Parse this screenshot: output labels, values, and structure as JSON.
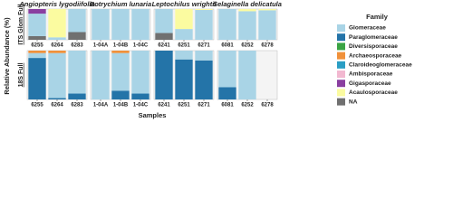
{
  "chart_data": {
    "type": "bar",
    "stacked": true,
    "y_label": "Relative Abundance (%)",
    "x_label": "Samples",
    "legend_title": "Family",
    "ylim": [
      0,
      100
    ],
    "facet_rows": [
      "ITS Glom Full",
      "18S Full"
    ],
    "facet_columns": [
      "Angiopteris lygodiifolia",
      "Botrychium lunaria",
      "Leptochilus wrightii",
      "Selaginella delicatula"
    ],
    "panels": [
      {
        "categories": [
          "6255",
          "6264",
          "6283"
        ]
      },
      {
        "categories": [
          "1-04A",
          "1-04B",
          "1-04C"
        ]
      },
      {
        "categories": [
          "6241",
          "6251",
          "6271"
        ]
      },
      {
        "categories": [
          "6081",
          "6252",
          "6278"
        ]
      },
      {
        "categories": [
          "6255",
          "6264",
          "6283"
        ]
      },
      {
        "categories": [
          "1-04A",
          "1-04B",
          "1-04C"
        ]
      },
      {
        "categories": [
          "6241",
          "6251",
          "6271"
        ]
      },
      {
        "categories": [
          "6081",
          "6252",
          "6278"
        ]
      }
    ],
    "series": [
      {
        "name": "Glomeraceae",
        "color": "#a9d4e6",
        "values": [
          [
            73,
            8,
            75
          ],
          [
            100,
            100,
            100
          ],
          [
            78,
            35,
            97
          ],
          [
            100,
            93,
            96
          ],
          [
            10,
            92,
            88
          ],
          [
            100,
            77,
            88
          ],
          [
            0,
            18,
            20
          ],
          [
            75,
            100,
            0
          ]
        ]
      },
      {
        "name": "Paraglomeraceae",
        "color": "#2474a8",
        "values": [
          [
            0,
            0,
            0
          ],
          [
            0,
            0,
            0
          ],
          [
            0,
            0,
            0
          ],
          [
            0,
            0,
            0
          ],
          [
            85,
            3,
            12
          ],
          [
            0,
            18,
            12
          ],
          [
            100,
            82,
            80
          ],
          [
            25,
            0,
            0
          ]
        ]
      },
      {
        "name": "Diversisporaceae",
        "color": "#3aa444",
        "values": [
          [
            0,
            0,
            0
          ],
          [
            0,
            0,
            0
          ],
          [
            0,
            0,
            0
          ],
          [
            0,
            0,
            0
          ],
          [
            0,
            0,
            0
          ],
          [
            0,
            0,
            0
          ],
          [
            0,
            0,
            0
          ],
          [
            0,
            0,
            0
          ]
        ]
      },
      {
        "name": "Archaeosporaceae",
        "color": "#f0913a",
        "values": [
          [
            0,
            0,
            0
          ],
          [
            0,
            0,
            0
          ],
          [
            0,
            0,
            0
          ],
          [
            0,
            0,
            0
          ],
          [
            5,
            5,
            0
          ],
          [
            0,
            5,
            0
          ],
          [
            0,
            0,
            0
          ],
          [
            0,
            0,
            0
          ]
        ]
      },
      {
        "name": "Claroideoglomeraceae",
        "color": "#2a9ec4",
        "values": [
          [
            0,
            0,
            0
          ],
          [
            0,
            0,
            0
          ],
          [
            0,
            0,
            0
          ],
          [
            0,
            0,
            0
          ],
          [
            0,
            0,
            0
          ],
          [
            0,
            0,
            0
          ],
          [
            0,
            0,
            0
          ],
          [
            0,
            0,
            0
          ]
        ]
      },
      {
        "name": "Ambisporaceae",
        "color": "#f2b8d0",
        "values": [
          [
            0,
            0,
            0
          ],
          [
            0,
            0,
            0
          ],
          [
            0,
            0,
            0
          ],
          [
            0,
            0,
            0
          ],
          [
            0,
            0,
            0
          ],
          [
            0,
            0,
            0
          ],
          [
            0,
            0,
            0
          ],
          [
            0,
            0,
            0
          ]
        ]
      },
      {
        "name": "Gigasporaceae",
        "color": "#8a3fa0",
        "values": [
          [
            15,
            0,
            0
          ],
          [
            0,
            0,
            0
          ],
          [
            0,
            0,
            0
          ],
          [
            0,
            0,
            0
          ],
          [
            0,
            0,
            0
          ],
          [
            0,
            0,
            0
          ],
          [
            0,
            0,
            0
          ],
          [
            0,
            0,
            0
          ]
        ]
      },
      {
        "name": "Acaulosporaceae",
        "color": "#fbfba0",
        "values": [
          [
            0,
            92,
            0
          ],
          [
            0,
            0,
            0
          ],
          [
            0,
            65,
            3
          ],
          [
            0,
            7,
            4
          ],
          [
            0,
            0,
            0
          ],
          [
            0,
            0,
            0
          ],
          [
            0,
            0,
            0
          ],
          [
            0,
            0,
            0
          ]
        ]
      },
      {
        "name": "NA",
        "color": "#707070",
        "values": [
          [
            12,
            0,
            25
          ],
          [
            0,
            0,
            0
          ],
          [
            22,
            0,
            0
          ],
          [
            0,
            0,
            0
          ],
          [
            0,
            0,
            0
          ],
          [
            0,
            0,
            0
          ],
          [
            0,
            0,
            0
          ],
          [
            0,
            0,
            0
          ]
        ]
      }
    ]
  }
}
